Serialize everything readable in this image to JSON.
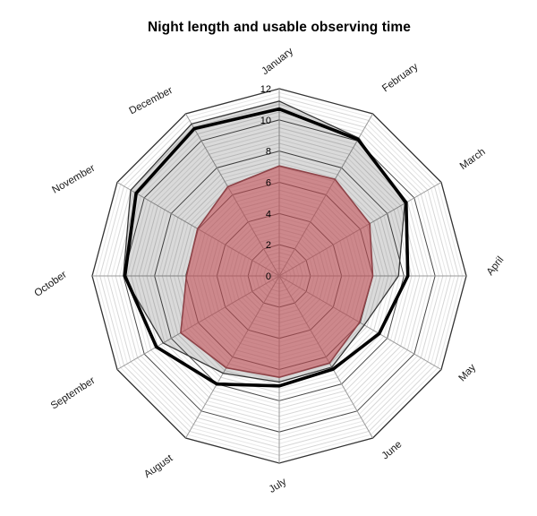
{
  "title": "Night length and usable observing time",
  "chart_data": {
    "type": "radar",
    "categories": [
      "January",
      "February",
      "March",
      "April",
      "May",
      "June",
      "July",
      "August",
      "September",
      "October",
      "November",
      "December"
    ],
    "series": [
      {
        "name": "gray_filled_area",
        "values": [
          11.2,
          10.2,
          9.3,
          7.65,
          6.3,
          6.75,
          6.8,
          7.2,
          8.6,
          10.0,
          11.0,
          11.25
        ],
        "fill": "rgba(0,0,0,0.145)",
        "stroke": "#333333",
        "stroke_width": 1.25
      },
      {
        "name": "red_filled_area",
        "values": [
          7.05,
          7.15,
          6.7,
          6.0,
          5.95,
          6.45,
          6.5,
          6.8,
          7.3,
          5.95,
          6.05,
          6.6
        ],
        "fill": "rgba(197,81,89,0.6)",
        "stroke": "#8e4348",
        "stroke_width": 1.6
      },
      {
        "name": "black_thick_line",
        "values": [
          10.7,
          10.1,
          9.4,
          8.25,
          7.4,
          6.9,
          7.05,
          8.0,
          9.1,
          9.9,
          10.6,
          10.9
        ],
        "fill": "none",
        "stroke": "#000000",
        "stroke_width": 3.6
      }
    ],
    "radial_ticks": [
      "0",
      "2",
      "4",
      "6",
      "8",
      "10",
      "12"
    ],
    "rlim": [
      0,
      12
    ],
    "major_step": 2,
    "minor_step": 0.25,
    "grid": {
      "major_color": "#4a4a4a",
      "outer_color": "#333333",
      "mid_minor_color": "#d6d6d6",
      "minor_color": "#e7e7e7",
      "spoke_color": "#9a9a9a"
    },
    "legend": "none"
  }
}
